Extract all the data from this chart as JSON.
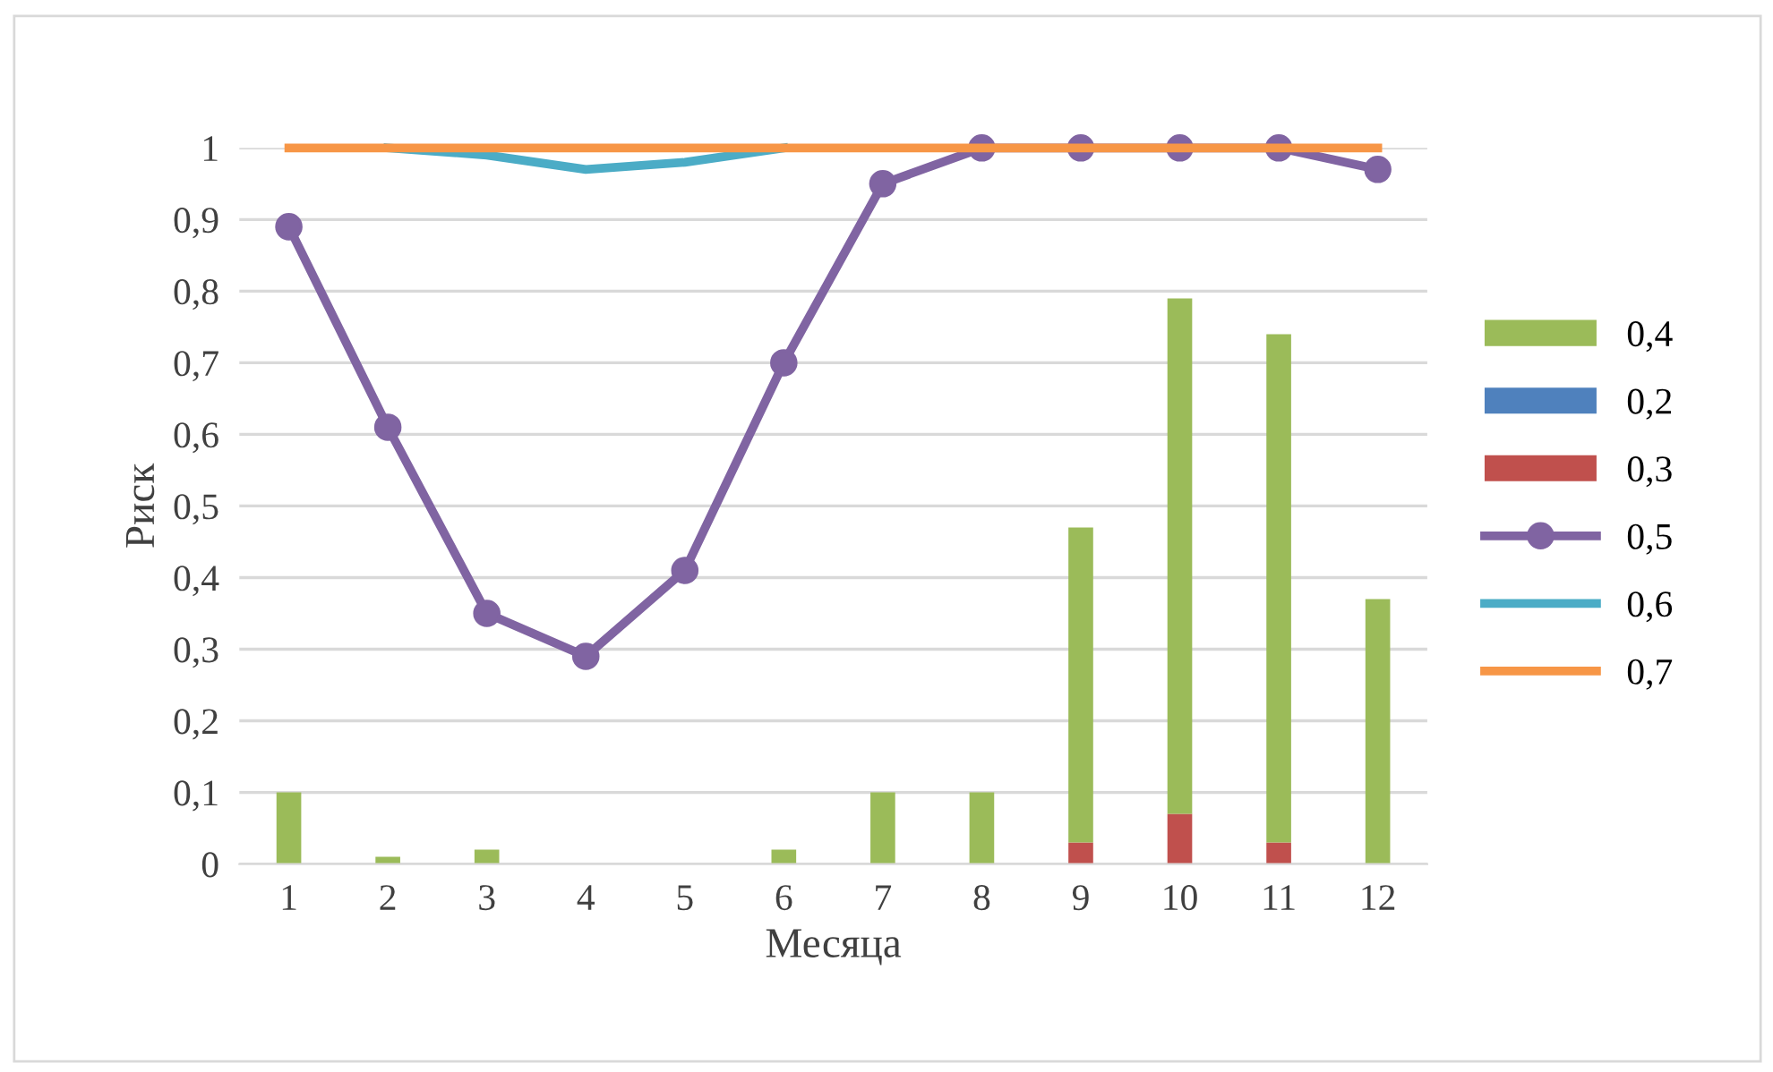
{
  "chart_data": {
    "type": "bar",
    "stacked": true,
    "xlabel": "Месяца",
    "ylabel": "Риск",
    "categories": [
      "1",
      "2",
      "3",
      "4",
      "5",
      "6",
      "7",
      "8",
      "9",
      "10",
      "11",
      "12"
    ],
    "series": [
      {
        "name": "0,3",
        "color": "#c0504d",
        "values": [
          0,
          0,
          0,
          0,
          0,
          0,
          0,
          0,
          0.03,
          0.07,
          0.03,
          0
        ]
      },
      {
        "name": "0,2",
        "color": "#4f81bd",
        "values": [
          0,
          0,
          0,
          0,
          0,
          0,
          0,
          0,
          0,
          0,
          0,
          0
        ]
      },
      {
        "name": "0,4",
        "color": "#9bbb59",
        "values": [
          0.1,
          0.01,
          0.02,
          0,
          0,
          0.02,
          0.1,
          0.1,
          0.44,
          0.72,
          0.71,
          0.37
        ]
      },
      {
        "name": "0,5",
        "type": "line",
        "marker": "circle",
        "color": "#8064a2",
        "values": [
          0.89,
          0.61,
          0.35,
          0.29,
          0.41,
          0.7,
          0.95,
          1,
          1,
          1,
          1,
          0.97
        ]
      },
      {
        "name": "0,6",
        "type": "line",
        "marker": "none",
        "color": "#4bacc6",
        "values": [
          null,
          1,
          0.99,
          0.97,
          0.98,
          1,
          null,
          null,
          null,
          null,
          null,
          null
        ]
      },
      {
        "name": "0,7",
        "type": "line",
        "marker": "none",
        "color": "#f79646",
        "values": [
          1,
          1,
          1,
          1,
          1,
          1,
          1,
          1,
          1,
          1,
          1,
          1
        ]
      }
    ],
    "ylim": [
      0,
      1
    ],
    "yticks": [
      {
        "value": 0,
        "label": "0"
      },
      {
        "value": 0.1,
        "label": "0,1"
      },
      {
        "value": 0.2,
        "label": "0,2"
      },
      {
        "value": 0.3,
        "label": "0,3"
      },
      {
        "value": 0.4,
        "label": "0,4"
      },
      {
        "value": 0.5,
        "label": "0,5"
      },
      {
        "value": 0.6,
        "label": "0,6"
      },
      {
        "value": 0.7,
        "label": "0,7"
      },
      {
        "value": 0.8,
        "label": "0,8"
      },
      {
        "value": 0.9,
        "label": "0,9"
      },
      {
        "value": 1,
        "label": "1"
      }
    ],
    "grid": "y",
    "legend": "right"
  }
}
